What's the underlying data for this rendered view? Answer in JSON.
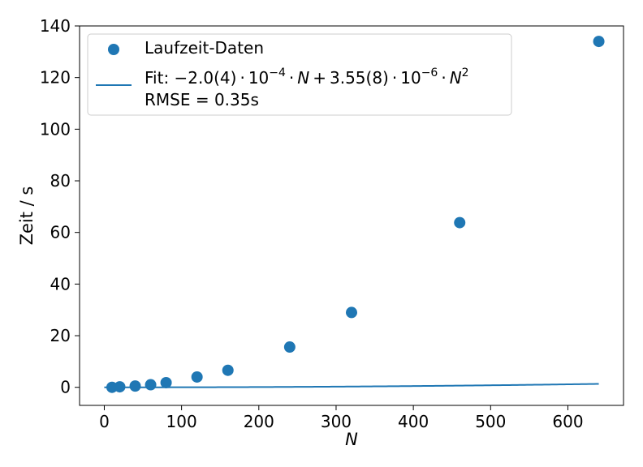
{
  "chart_data": {
    "type": "scatter",
    "xlabel": "N",
    "ylabel": "Zeit / s",
    "xlim": [
      -32,
      672
    ],
    "ylim": [
      -7,
      140
    ],
    "xticks": [
      0,
      100,
      200,
      300,
      400,
      500,
      600
    ],
    "yticks": [
      0,
      20,
      40,
      60,
      80,
      100,
      120,
      140
    ],
    "grid": false,
    "legend_position": "upper-left",
    "series": [
      {
        "name": "Laufzeit-Daten",
        "kind": "scatter",
        "color": "#1f77b4",
        "x": [
          10,
          20,
          40,
          60,
          80,
          120,
          160,
          240,
          320,
          460,
          640
        ],
        "y": [
          0.0,
          0.2,
          0.5,
          1.0,
          1.8,
          4.0,
          6.6,
          15.6,
          29.0,
          63.8,
          134.0
        ]
      },
      {
        "name_parts": {
          "prefix": "Fit: ",
          "a_mantissa": "−2.0(4)",
          "a_exp": "−4",
          "b_mantissa": "3.55(8)",
          "b_exp": "−6",
          "var": "N",
          "power": "2",
          "rmse_line": "RMSE = 0.35s"
        },
        "kind": "line",
        "color": "#1f77b4",
        "a": -0.0002,
        "b": 3.55e-06,
        "x_range": [
          0,
          640
        ]
      }
    ]
  }
}
